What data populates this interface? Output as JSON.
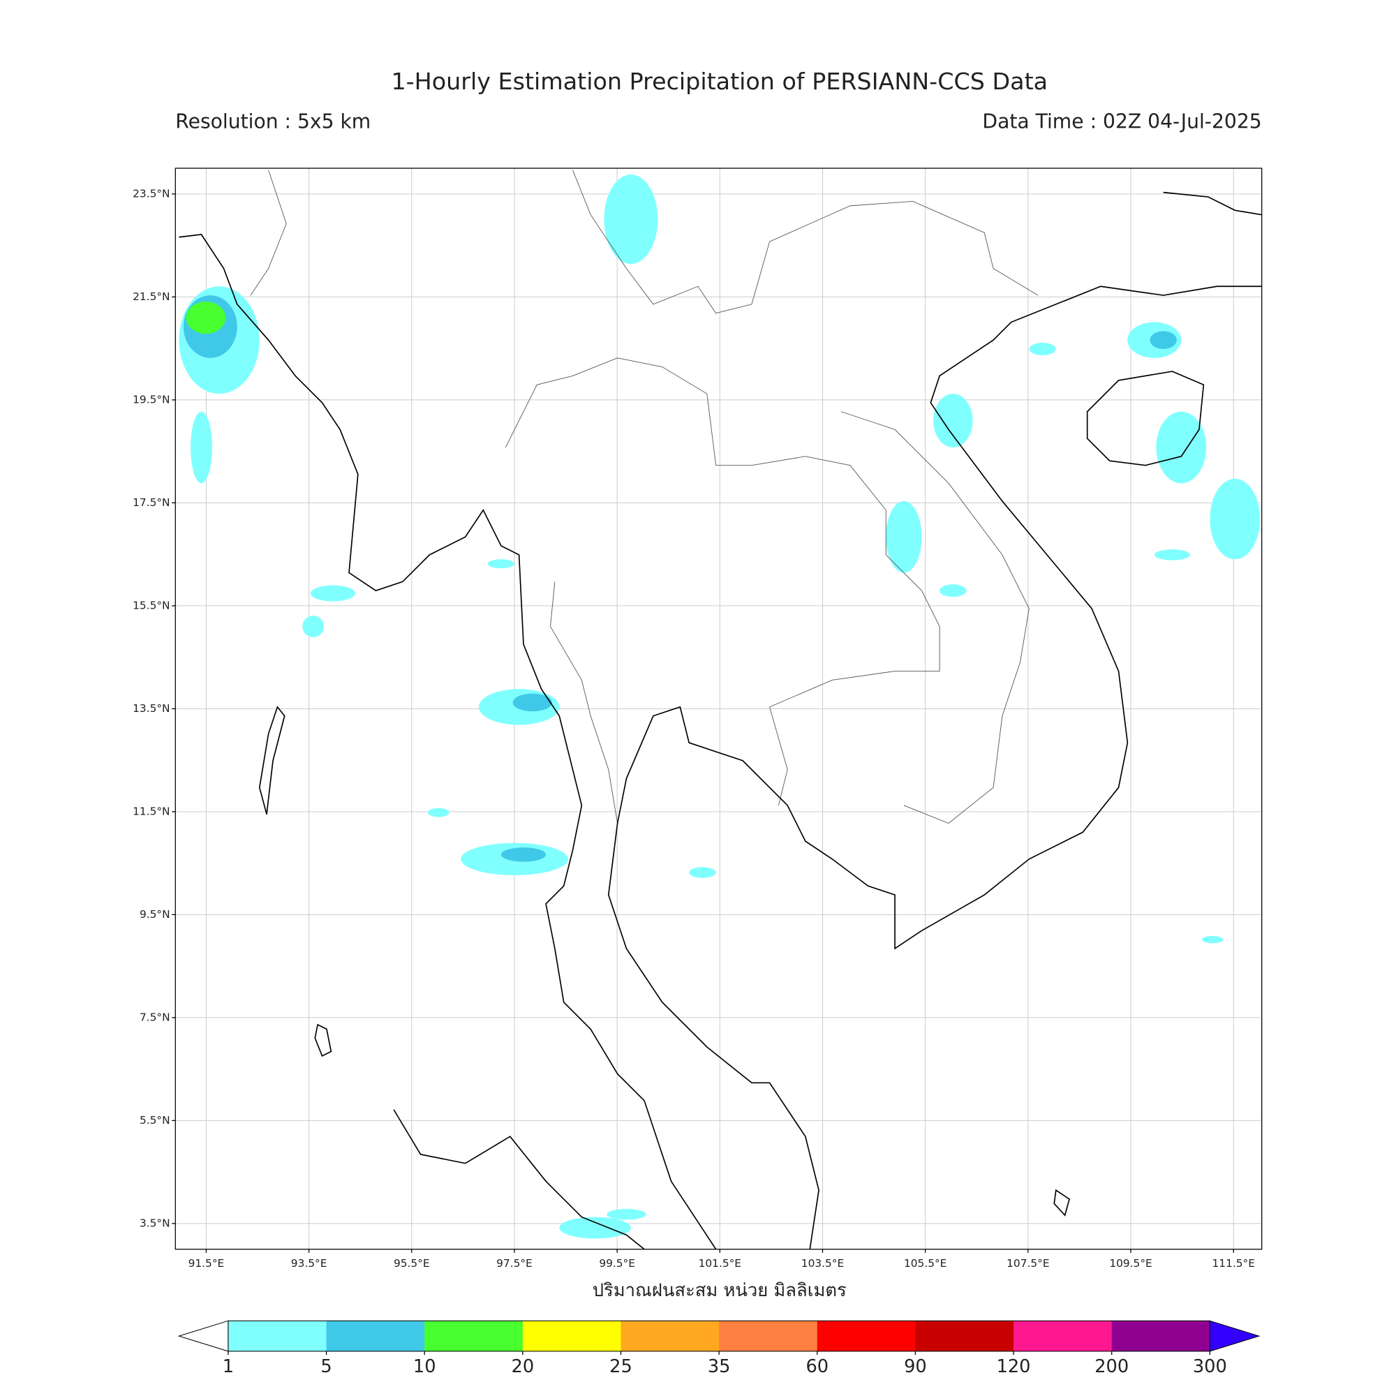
{
  "header": {
    "title": "1-Hourly Estimation Precipitation of PERSIANN-CCS Data",
    "resolution": "Resolution : 5x5 km",
    "data_time": "Data Time : 02Z 04-Jul-2025"
  },
  "map": {
    "xlim": [
      90.9,
      112.05
    ],
    "ylim": [
      3.0,
      24.0
    ],
    "xticks": [
      {
        "value": 91.5,
        "label": "91.5°E"
      },
      {
        "value": 93.5,
        "label": "93.5°E"
      },
      {
        "value": 95.5,
        "label": "95.5°E"
      },
      {
        "value": 97.5,
        "label": "97.5°E"
      },
      {
        "value": 99.5,
        "label": "99.5°E"
      },
      {
        "value": 101.5,
        "label": "101.5°E"
      },
      {
        "value": 103.5,
        "label": "103.5°E"
      },
      {
        "value": 105.5,
        "label": "105.5°E"
      },
      {
        "value": 107.5,
        "label": "107.5°E"
      },
      {
        "value": 109.5,
        "label": "109.5°E"
      },
      {
        "value": 111.5,
        "label": "111.5°E"
      }
    ],
    "yticks": [
      {
        "value": 23.5,
        "label": "23.5°N"
      },
      {
        "value": 21.5,
        "label": "21.5°N"
      },
      {
        "value": 19.5,
        "label": "19.5°N"
      },
      {
        "value": 17.5,
        "label": "17.5°N"
      },
      {
        "value": 15.5,
        "label": "15.5°N"
      },
      {
        "value": 13.5,
        "label": "13.5°N"
      },
      {
        "value": 11.5,
        "label": "11.5°N"
      },
      {
        "value": 9.5,
        "label": "9.5°N"
      },
      {
        "value": 7.5,
        "label": "7.5°N"
      },
      {
        "value": 5.5,
        "label": "5.5°N"
      },
      {
        "value": 3.5,
        "label": "3.5°N"
      }
    ],
    "grid": true
  },
  "colorbar": {
    "label": "ปริมาณฝนสะสม หน่วย มิลลิเมตร",
    "levels": [
      1,
      5,
      10,
      20,
      25,
      35,
      60,
      90,
      120,
      200,
      300
    ],
    "colors": [
      "#80ffff",
      "#40c8e8",
      "#48ff30",
      "#ffff00",
      "#ffa820",
      "#ff8040",
      "#ff0000",
      "#c80000",
      "#ff1890",
      "#900090"
    ],
    "under_color": "#ffffff",
    "over_color": "#3300ff"
  }
}
